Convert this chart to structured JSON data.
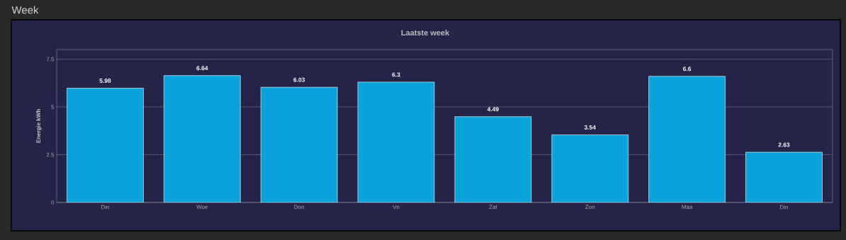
{
  "chart_data": {
    "type": "bar",
    "title": "Week",
    "subtitle": "Laatste week",
    "ylabel": "Energie kWh",
    "categories": [
      "Din",
      "Woe",
      "Don",
      "Vri",
      "Zat",
      "Zon",
      "Maa",
      "Din"
    ],
    "values": [
      5.98,
      6.64,
      6.03,
      6.3,
      4.49,
      3.54,
      6.6,
      2.63
    ],
    "color": "#0aa3dc",
    "ylim": [
      0,
      8
    ],
    "yticks": [
      0,
      2.5,
      5,
      7.5
    ],
    "grid": "y",
    "data_labels": true
  }
}
